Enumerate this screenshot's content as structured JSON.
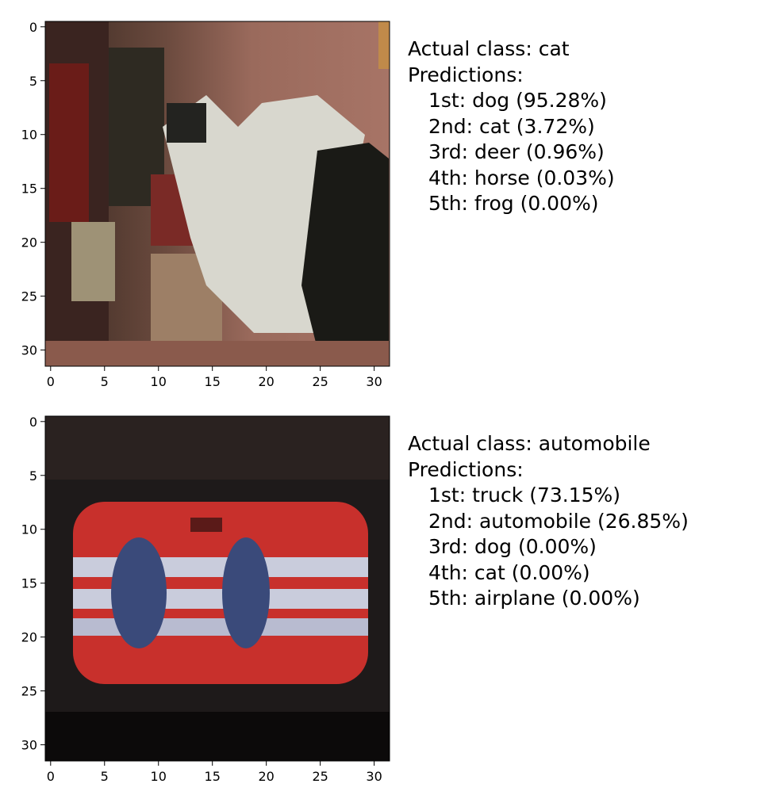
{
  "panels": [
    {
      "actual_label": "Actual class: cat",
      "predictions_label": "Predictions:",
      "predictions": [
        "1st: dog (95.28%)",
        "2nd: cat (3.72%)",
        "3rd: deer (0.96%)",
        "4th: horse (0.03%)",
        "5th: frog (0.00%)"
      ],
      "x_ticks": [
        "0",
        "5",
        "10",
        "15",
        "20",
        "25",
        "30"
      ],
      "y_ticks": [
        "0",
        "5",
        "10",
        "15",
        "20",
        "25",
        "30"
      ]
    },
    {
      "actual_label": "Actual class: automobile",
      "predictions_label": "Predictions:",
      "predictions": [
        "1st: truck (73.15%)",
        "2nd: automobile (26.85%)",
        "3rd: dog (0.00%)",
        "4th: cat (0.00%)",
        "5th: airplane (0.00%)"
      ],
      "x_ticks": [
        "0",
        "5",
        "10",
        "15",
        "20",
        "25",
        "30"
      ],
      "y_ticks": [
        "0",
        "5",
        "10",
        "15",
        "20",
        "25",
        "30"
      ]
    }
  ]
}
